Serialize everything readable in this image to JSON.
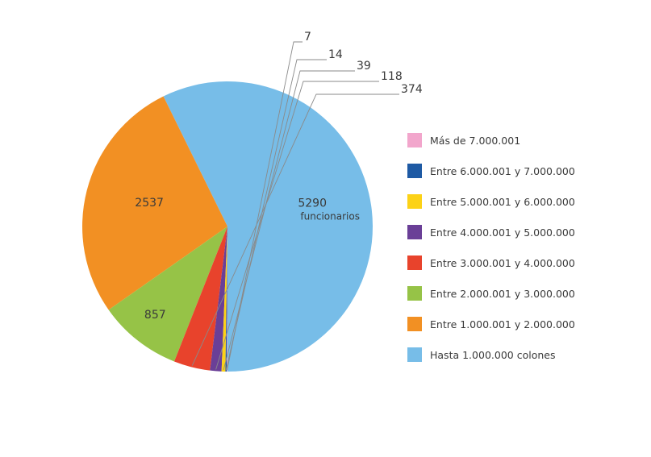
{
  "chart_data": {
    "type": "pie",
    "slices": [
      {
        "label": "Hasta 1.000.000 colones",
        "value": 5290,
        "color": "#77bde8",
        "data_label": "5290",
        "data_sublabel": "funcionarios"
      },
      {
        "label": "Entre 1.000.001 y 2.000.000",
        "value": 2537,
        "color": "#f29023",
        "data_label": "2537"
      },
      {
        "label": "Entre 2.000.001 y 3.000.000",
        "value": 857,
        "color": "#96c347",
        "data_label": "857"
      },
      {
        "label": "Entre 3.000.001 y 4.000.000",
        "value": 374,
        "color": "#e8432c",
        "data_label": "374"
      },
      {
        "label": "Entre 4.000.001 y 5.000.000",
        "value": 118,
        "color": "#6a3f97",
        "data_label": "118"
      },
      {
        "label": "Entre 5.000.001 y 6.000.000",
        "value": 39,
        "color": "#fcd217",
        "data_label": "39"
      },
      {
        "label": "Entre 6.000.001 y 7.000.000",
        "value": 14,
        "color": "#1e5aa4",
        "data_label": "14"
      },
      {
        "label": "Más de 7.000.001",
        "value": 7,
        "color": "#f2a6cc",
        "data_label": "7"
      }
    ],
    "legend_order": [
      "Más de 7.000.001",
      "Entre 6.000.001 y 7.000.000",
      "Entre 5.000.001 y 6.000.000",
      "Entre 4.000.001 y 5.000.000",
      "Entre 3.000.001 y 4.000.000",
      "Entre 2.000.001 y 3.000.000",
      "Entre 1.000.001 y 2.000.000",
      "Hasta 1.000.000 colones"
    ],
    "legend_position": "right",
    "start": "bottom",
    "direction": "counterclockwise"
  }
}
